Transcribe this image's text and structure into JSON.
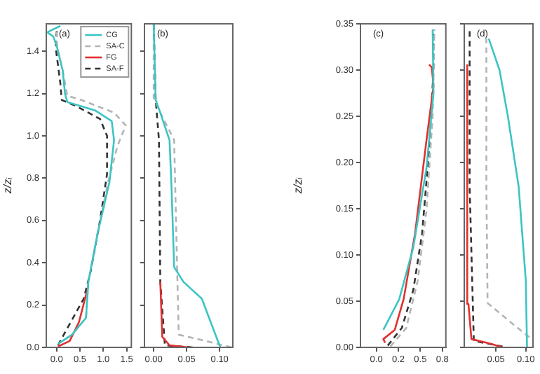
{
  "chart_data": [
    {
      "type": "line",
      "annotations": [
        "(a)"
      ],
      "ylabel": "z/zᵢ",
      "legend": "top right",
      "marker": "none",
      "grid": false,
      "xlim": [
        -0.22,
        1.6
      ],
      "ylim": [
        0,
        1.53
      ],
      "xticks": [
        {
          "value": 0,
          "label": "0.0"
        },
        {
          "value": 0.5,
          "label": "0.5"
        },
        {
          "value": 1,
          "label": "1.0"
        },
        {
          "value": 1.5,
          "label": "1.5"
        }
      ],
      "yticks": [
        {
          "value": 0,
          "label": "0.0"
        },
        {
          "value": 0.2,
          "label": "0.2"
        },
        {
          "value": 0.4,
          "label": "0.4"
        },
        {
          "value": 0.6,
          "label": "0.6"
        },
        {
          "value": 0.8,
          "label": "0.8"
        },
        {
          "value": 1,
          "label": "1.0"
        },
        {
          "value": 1.2,
          "label": "1.2"
        },
        {
          "value": 1.4,
          "label": "1.4"
        }
      ],
      "series": [
        {
          "name": "CG",
          "color": "#3cc4c4",
          "line_style": "solid",
          "x": [
            0.03,
            0.33,
            0.63,
            0.68,
            0.88,
            1.13,
            1.23,
            1.18,
            0.83,
            0.23,
            0.18,
            0.13,
            0.01,
            -0.07,
            -0.2,
            0.08
          ],
          "values": [
            0.016,
            0.06,
            0.14,
            0.31,
            0.54,
            0.78,
            0.98,
            1.07,
            1.12,
            1.16,
            1.2,
            1.31,
            1.42,
            1.47,
            1.49,
            1.52
          ]
        },
        {
          "name": "SA-C",
          "color": "#b4b4b4",
          "line_style": "dashed",
          "x": [
            0.03,
            0.33,
            0.63,
            0.68,
            0.88,
            1.1,
            1.3,
            1.48,
            1.23,
            0.53,
            0.23,
            0.13,
            0.01,
            0.01
          ],
          "values": [
            0.016,
            0.06,
            0.14,
            0.31,
            0.54,
            0.78,
            0.95,
            1.05,
            1.11,
            1.17,
            1.19,
            1.31,
            1.42,
            1.51
          ]
        },
        {
          "name": "FG",
          "color": "#e03030",
          "line_style": "solid",
          "x": [
            0.03,
            0.28,
            0.48,
            0.68
          ],
          "values": [
            0.004,
            0.03,
            0.12,
            0.29
          ]
        },
        {
          "name": "SA-F",
          "color": "#333333",
          "line_style": "dashed",
          "x": [
            0.03,
            0.58,
            0.73,
            0.93,
            1.08,
            1.08,
            0.93,
            0.43,
            0.11,
            0.08,
            -0.02,
            0.01
          ],
          "values": [
            0.01,
            0.23,
            0.36,
            0.6,
            0.82,
            1.0,
            1.08,
            1.14,
            1.17,
            1.25,
            1.42,
            1.51
          ]
        }
      ]
    },
    {
      "type": "line",
      "annotations": [
        "(b)"
      ],
      "marker": "none",
      "grid": false,
      "tick_labels": "x",
      "xlim": [
        -0.014,
        0.12
      ],
      "ylim": [
        0,
        1.53
      ],
      "xticks": [
        {
          "value": 0,
          "label": "0.00"
        },
        {
          "value": 0.05,
          "label": "0.05"
        },
        {
          "value": 0.1,
          "label": "0.10"
        }
      ],
      "yticks": [
        0,
        0.2,
        0.4,
        0.6,
        0.8,
        1,
        1.2,
        1.4
      ],
      "series": [
        {
          "color": "#3cc4c4",
          "line_style": "solid",
          "x": [
            0.101,
            0.09,
            0.073,
            0.045,
            0.031,
            0.027,
            0.024,
            0.01,
            0.003,
            0
          ],
          "values": [
            0,
            0.09,
            0.23,
            0.31,
            0.38,
            0.76,
            0.98,
            1.11,
            1.17,
            1.53
          ]
        },
        {
          "color": "#b4b4b4",
          "line_style": "dashed",
          "x": [
            0.118,
            0.066,
            0.038,
            0.036,
            0.031,
            0.01,
            0,
            0
          ],
          "values": [
            0,
            0.04,
            0.06,
            0.31,
            0.98,
            1.11,
            1.18,
            1.53
          ]
        },
        {
          "color": "#e03030",
          "line_style": "solid",
          "x": [
            0.052,
            0.024,
            0.013,
            0.01
          ],
          "values": [
            0,
            0.01,
            0.05,
            0.31
          ]
        },
        {
          "color": "#333333",
          "line_style": "dashed",
          "x": [
            0.059,
            0.017,
            0.01,
            0.008,
            0.003,
            0
          ],
          "values": [
            0,
            0.01,
            0.31,
            0.98,
            1.17,
            1.53
          ]
        }
      ]
    },
    {
      "type": "line",
      "annotations": [
        "(c)"
      ],
      "ylabel": "z/zᵢ",
      "marker": "none",
      "grid": false,
      "xlim": [
        -0.18,
        0.79
      ],
      "ylim": [
        0,
        0.35
      ],
      "xticks": [
        {
          "value": 0,
          "label": "0.0"
        },
        {
          "value": 0.25,
          "label": "0.2"
        },
        {
          "value": 0.5,
          "label": "0.5"
        },
        {
          "value": 0.75,
          "label": "0.8"
        }
      ],
      "yticks": [
        {
          "value": 0,
          "label": "0.00"
        },
        {
          "value": 0.05,
          "label": "0.05"
        },
        {
          "value": 0.1,
          "label": "0.10"
        },
        {
          "value": 0.15,
          "label": "0.15"
        },
        {
          "value": 0.2,
          "label": "0.20"
        },
        {
          "value": 0.25,
          "label": "0.25"
        },
        {
          "value": 0.3,
          "label": "0.30"
        },
        {
          "value": 0.35,
          "label": "0.35"
        }
      ],
      "series": [
        {
          "color": "#3cc4c4",
          "line_style": "solid",
          "x": [
            0.08,
            0.26,
            0.42,
            0.57,
            0.65,
            0.64
          ],
          "values": [
            0.019,
            0.052,
            0.108,
            0.194,
            0.275,
            0.344
          ]
        },
        {
          "color": "#b4b4b4",
          "line_style": "dashed",
          "x": [
            0.16,
            0.34,
            0.47,
            0.57,
            0.64,
            0.66
          ],
          "values": [
            0.001,
            0.021,
            0.072,
            0.148,
            0.25,
            0.344
          ]
        },
        {
          "color": "#e03030",
          "line_style": "solid",
          "x": [
            0.1,
            0.08,
            0.21,
            0.31,
            0.44,
            0.57,
            0.65,
            0.63,
            0.6
          ],
          "values": [
            0.005,
            0.009,
            0.019,
            0.052,
            0.123,
            0.224,
            0.283,
            0.303,
            0.306
          ]
        },
        {
          "color": "#333333",
          "line_style": "dashed",
          "x": [
            0.13,
            0.29,
            0.42,
            0.52,
            0.6,
            0.65,
            0.65
          ],
          "values": [
            0.002,
            0.021,
            0.062,
            0.123,
            0.214,
            0.3,
            0.344
          ]
        }
      ]
    },
    {
      "type": "line",
      "annotations": [
        "(d)"
      ],
      "marker": "none",
      "grid": false,
      "tick_labels": "x",
      "xlim": [
        -0.003,
        0.112
      ],
      "ylim": [
        0,
        0.35
      ],
      "xticks": [
        {
          "value": 0.05,
          "label": "0.05"
        },
        {
          "value": 0.1,
          "label": "0.10"
        }
      ],
      "yticks": [
        0,
        0.05,
        0.1,
        0.15,
        0.2,
        0.25,
        0.3,
        0.35
      ],
      "series": [
        {
          "color": "#3cc4c4",
          "line_style": "solid",
          "x": [
            0.102,
            0.1,
            0.088,
            0.07,
            0.056,
            0.038
          ],
          "values": [
            0,
            0.072,
            0.174,
            0.25,
            0.3,
            0.334
          ]
        },
        {
          "color": "#b4b4b4",
          "line_style": "dashed",
          "x": [
            0.106,
            0.077,
            0.036,
            0.034,
            0.034
          ],
          "values": [
            0.011,
            0.026,
            0.048,
            0.174,
            0.334
          ]
        },
        {
          "color": "#e03030",
          "line_style": "solid",
          "x": [
            0.061,
            0.041,
            0.009,
            0.004,
            0.002
          ],
          "values": [
            0,
            0.004,
            0.009,
            0.047,
            0.306
          ]
        },
        {
          "color": "#333333",
          "line_style": "dashed",
          "x": [
            0.061,
            0.013,
            0.006,
            0.006
          ],
          "values": [
            0.001,
            0.007,
            0.174,
            0.346
          ]
        }
      ]
    }
  ]
}
